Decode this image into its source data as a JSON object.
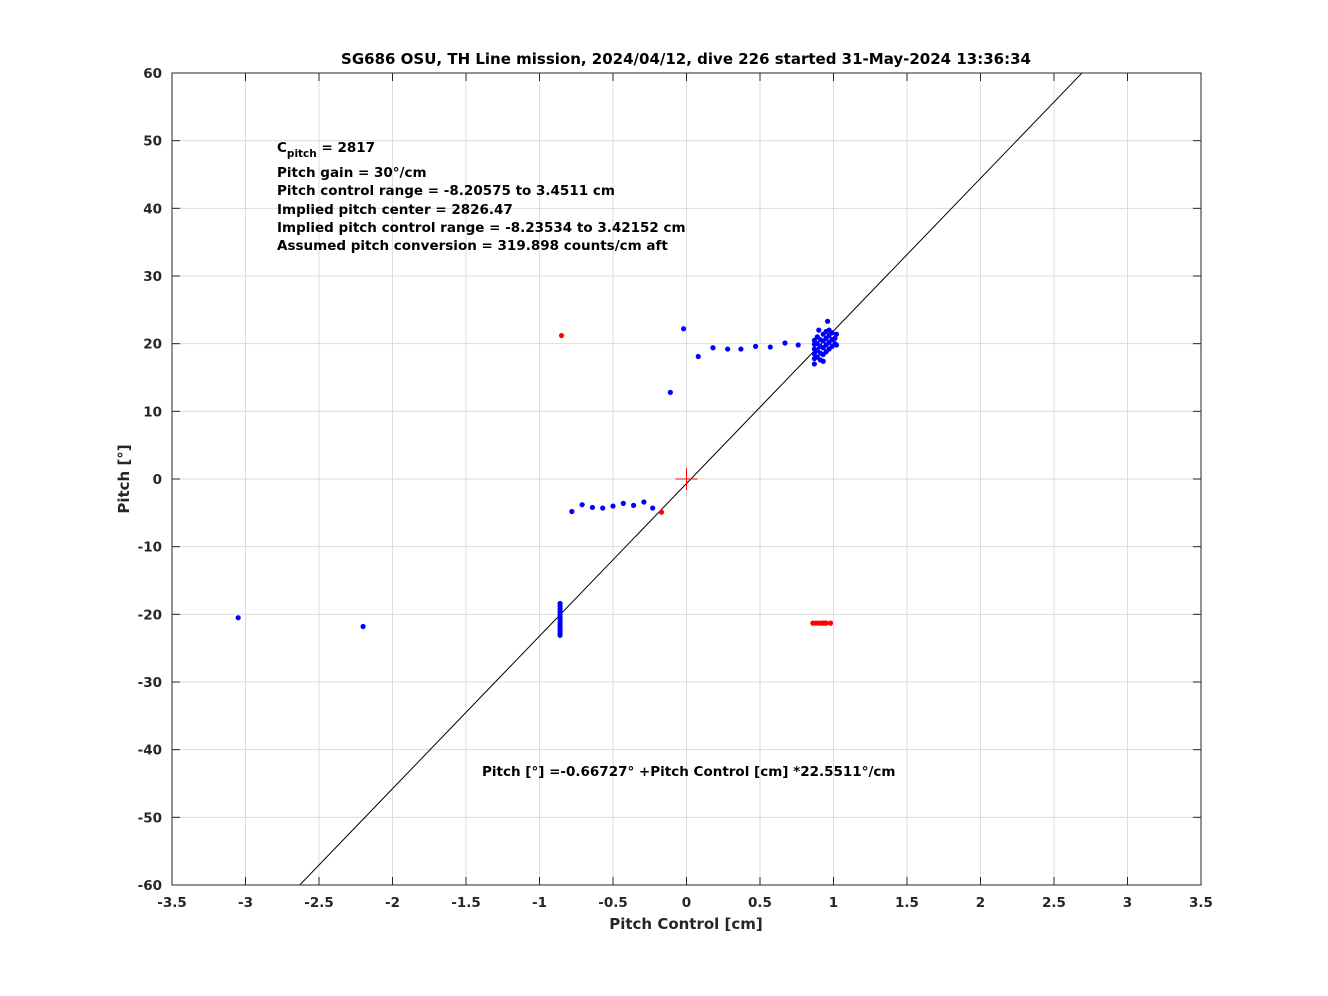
{
  "chart_data": {
    "type": "scatter",
    "title": "SG686 OSU, TH Line mission, 2024/04/12, dive 226 started 31-May-2024 13:36:34",
    "xlabel": "Pitch Control [cm]",
    "ylabel": "Pitch [°]",
    "xlim": [
      -3.5,
      3.5
    ],
    "ylim": [
      -60,
      60
    ],
    "grid": true,
    "x_ticks": [
      -3.5,
      -3,
      -2.5,
      -2,
      -1.5,
      -1,
      -0.5,
      0,
      0.5,
      1,
      1.5,
      2,
      2.5,
      3,
      3.5
    ],
    "x_tick_labels": [
      "-3.5",
      "-3",
      "-2.5",
      "-2",
      "-1.5",
      "-1",
      "-0.5",
      "0",
      "0.5",
      "1",
      "1.5",
      "2",
      "2.5",
      "3",
      "3.5"
    ],
    "y_ticks": [
      60,
      50,
      40,
      30,
      20,
      10,
      0,
      -10,
      -20,
      -30,
      -40,
      -50,
      -60
    ],
    "y_tick_labels": [
      "60",
      "50",
      "40",
      "30",
      "20",
      "10",
      "0",
      "-10",
      "-20",
      "-30",
      "-40",
      "-50",
      "-60"
    ],
    "colors": {
      "fit_line": "#000000",
      "used_points": "#0000ff",
      "excluded_points": "#ff0000",
      "center_marker": "#ff0000",
      "grid": "#dcdcdc"
    },
    "annotation_lines": [
      {
        "prefix": "C",
        "sub": "pitch",
        "suffix": " = 2817"
      },
      {
        "text": "Pitch gain = 30°/cm"
      },
      {
        "text": "Pitch control range = -8.20575 to 3.4511 cm"
      },
      {
        "text": "Implied pitch center = 2826.47"
      },
      {
        "text": "Implied pitch control range = -8.23534 to 3.42152 cm"
      },
      {
        "text": "Assumed pitch conversion = 319.898 counts/cm aft"
      }
    ],
    "fit_equation": "Pitch [°] =-0.66727° +Pitch Control [cm] *22.5511°/cm",
    "fit": {
      "intercept": -0.66727,
      "slope": 22.5511
    },
    "center_marker": {
      "x": 0,
      "y": 0,
      "symbol": "+"
    },
    "series": [
      {
        "points": [
          [
            -3.05,
            -20.5
          ],
          [
            -2.2,
            -21.8
          ],
          [
            -0.78,
            -4.8
          ],
          [
            -0.71,
            -3.8
          ],
          [
            -0.64,
            -4.2
          ],
          [
            -0.57,
            -4.3
          ],
          [
            -0.5,
            -4.0
          ],
          [
            -0.43,
            -3.6
          ],
          [
            -0.36,
            -3.9
          ],
          [
            -0.29,
            -3.4
          ],
          [
            -0.23,
            -4.3
          ],
          [
            -0.11,
            12.8
          ],
          [
            -0.02,
            22.2
          ],
          [
            0.08,
            18.1
          ],
          [
            0.18,
            19.4
          ],
          [
            0.28,
            19.2
          ],
          [
            0.37,
            19.2
          ],
          [
            0.47,
            19.6
          ],
          [
            0.57,
            19.5
          ],
          [
            0.67,
            20.1
          ],
          [
            0.76,
            19.8
          ],
          [
            -0.86,
            -18.4
          ],
          [
            -0.86,
            -18.8
          ],
          [
            -0.86,
            -19.2
          ],
          [
            -0.86,
            -19.6
          ],
          [
            -0.86,
            -20.0
          ],
          [
            -0.86,
            -20.4
          ],
          [
            -0.86,
            -20.8
          ],
          [
            -0.86,
            -21.2
          ],
          [
            -0.86,
            -21.6
          ],
          [
            -0.86,
            -22.0
          ],
          [
            -0.86,
            -22.4
          ],
          [
            -0.86,
            -22.8
          ],
          [
            -0.86,
            -23.1
          ],
          [
            0.87,
            17.0
          ],
          [
            0.87,
            17.8
          ],
          [
            0.87,
            18.5
          ],
          [
            0.87,
            19.2
          ],
          [
            0.87,
            19.9
          ],
          [
            0.87,
            20.5
          ],
          [
            0.89,
            18.0
          ],
          [
            0.89,
            19.0
          ],
          [
            0.89,
            20.0
          ],
          [
            0.89,
            21.0
          ],
          [
            0.9,
            22.0
          ],
          [
            0.91,
            17.6
          ],
          [
            0.91,
            18.6
          ],
          [
            0.91,
            19.6
          ],
          [
            0.91,
            20.6
          ],
          [
            0.93,
            17.4
          ],
          [
            0.93,
            18.4
          ],
          [
            0.93,
            19.4
          ],
          [
            0.93,
            20.4
          ],
          [
            0.93,
            21.4
          ],
          [
            0.95,
            18.8
          ],
          [
            0.95,
            19.8
          ],
          [
            0.95,
            20.8
          ],
          [
            0.95,
            21.8
          ],
          [
            0.96,
            23.3
          ],
          [
            0.97,
            19.2
          ],
          [
            0.97,
            20.2
          ],
          [
            0.97,
            21.2
          ],
          [
            0.97,
            22.0
          ],
          [
            0.99,
            19.6
          ],
          [
            0.99,
            20.6
          ],
          [
            0.99,
            21.6
          ],
          [
            1.01,
            20.0
          ],
          [
            1.01,
            20.8
          ],
          [
            1.02,
            21.4
          ],
          [
            1.02,
            19.8
          ]
        ]
      },
      {
        "points": [
          [
            -0.85,
            21.2
          ],
          [
            -0.17,
            -4.9
          ],
          [
            0.86,
            -21.3
          ],
          [
            0.88,
            -21.3
          ],
          [
            0.9,
            -21.3
          ],
          [
            0.92,
            -21.3
          ],
          [
            0.93,
            -21.3
          ],
          [
            0.94,
            -21.3
          ],
          [
            0.95,
            -21.3
          ],
          [
            0.98,
            -21.3
          ]
        ]
      }
    ]
  }
}
